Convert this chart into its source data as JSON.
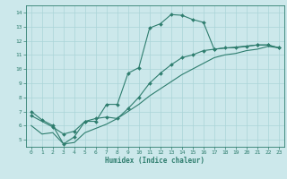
{
  "xlabel": "Humidex (Indice chaleur)",
  "xlim": [
    -0.5,
    23.5
  ],
  "ylim": [
    4.5,
    14.5
  ],
  "xticks": [
    0,
    1,
    2,
    3,
    4,
    5,
    6,
    7,
    8,
    9,
    10,
    11,
    12,
    13,
    14,
    15,
    16,
    17,
    18,
    19,
    20,
    21,
    22,
    23
  ],
  "yticks": [
    5,
    6,
    7,
    8,
    9,
    10,
    11,
    12,
    13,
    14
  ],
  "bg_color": "#cce8eb",
  "line_color": "#2e7d6e",
  "grid_color": "#aad4d8",
  "line1_x": [
    0,
    1,
    2,
    3,
    4,
    5,
    6,
    7,
    8,
    9,
    10,
    11,
    12,
    13,
    14,
    15,
    16,
    17,
    21,
    22,
    23
  ],
  "line1_y": [
    7.0,
    6.4,
    6.0,
    4.7,
    5.2,
    6.3,
    6.3,
    7.5,
    7.5,
    9.7,
    10.1,
    12.9,
    13.2,
    13.85,
    13.8,
    13.5,
    13.3,
    11.4,
    11.7,
    11.7,
    11.5
  ],
  "line2_x": [
    0,
    2,
    3,
    4,
    5,
    6,
    7,
    8,
    9,
    10,
    11,
    12,
    13,
    14,
    15,
    16,
    17,
    18,
    19,
    20,
    21,
    22,
    23
  ],
  "line2_y": [
    6.7,
    5.9,
    5.4,
    5.6,
    6.3,
    6.5,
    6.6,
    6.5,
    7.2,
    8.0,
    9.0,
    9.7,
    10.3,
    10.8,
    11.0,
    11.3,
    11.4,
    11.5,
    11.5,
    11.6,
    11.7,
    11.7,
    11.5
  ],
  "line3_x": [
    0,
    1,
    2,
    3,
    4,
    5,
    6,
    7,
    8,
    9,
    10,
    11,
    12,
    13,
    14,
    15,
    16,
    17,
    18,
    19,
    20,
    21,
    22,
    23
  ],
  "line3_y": [
    6.0,
    5.4,
    5.5,
    4.7,
    4.8,
    5.5,
    5.8,
    6.1,
    6.5,
    7.0,
    7.5,
    8.1,
    8.6,
    9.1,
    9.6,
    10.0,
    10.4,
    10.8,
    11.0,
    11.1,
    11.3,
    11.4,
    11.6,
    11.5
  ]
}
